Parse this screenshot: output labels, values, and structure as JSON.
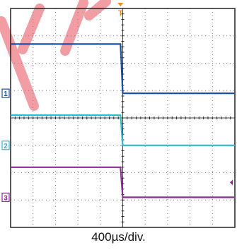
{
  "chart_data": {
    "type": "line",
    "title": "",
    "xlabel": "400µs/div.",
    "ylabel": "",
    "grid": true,
    "x_divisions": 10,
    "y_divisions": 8,
    "x_range_div": [
      0,
      10
    ],
    "y_range_div": [
      0,
      8
    ],
    "trigger_marker": {
      "label": "T",
      "x_div": 4.9,
      "color": "#f08a1e"
    },
    "watermark_color": "#f08b94",
    "series": [
      {
        "channel_marker": "1",
        "color": "#1f4fa3",
        "points": [
          [
            0,
            6.7
          ],
          [
            4.9,
            6.7
          ],
          [
            5.0,
            4.9
          ],
          [
            10,
            4.9
          ]
        ]
      },
      {
        "channel_marker": "2",
        "color": "#2fb9c6",
        "points": [
          [
            0,
            4.1
          ],
          [
            4.9,
            4.1
          ],
          [
            5.0,
            3.0
          ],
          [
            10,
            3.0
          ]
        ]
      },
      {
        "channel_marker": "3",
        "color": "#8e2d94",
        "points": [
          [
            0,
            2.2
          ],
          [
            4.9,
            2.2
          ],
          [
            5.0,
            1.1
          ],
          [
            10,
            1.1
          ]
        ]
      }
    ]
  }
}
